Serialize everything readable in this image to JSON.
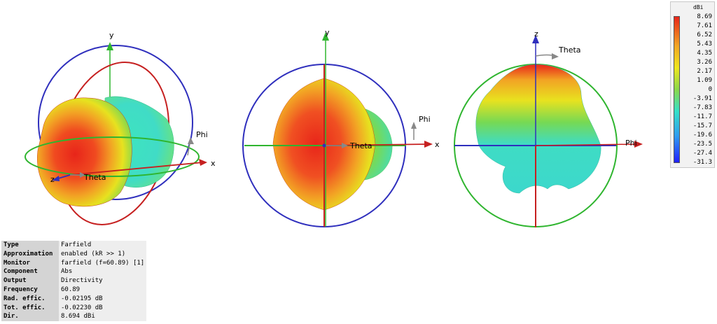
{
  "views": [
    {
      "axes": {
        "x": "x",
        "y": "y",
        "z": "z"
      },
      "angles": {
        "theta": "Theta",
        "phi": "Phi"
      }
    },
    {
      "axes": {
        "x": "x",
        "y": "y"
      },
      "angles": {
        "theta": "Theta",
        "phi": "Phi"
      }
    },
    {
      "axes": {
        "z": "z"
      },
      "angles": {
        "theta": "Theta",
        "phi": "Phi"
      }
    }
  ],
  "colorbar": {
    "unit": "dBi",
    "ticks": [
      "8.69",
      "7.61",
      "6.52",
      "5.43",
      "4.35",
      "3.26",
      "2.17",
      "1.09",
      "0",
      "-3.91",
      "-7.83",
      "-11.7",
      "-15.7",
      "-19.6",
      "-23.5",
      "-27.4",
      "-31.3"
    ],
    "colors": {
      "max": "#e8251a",
      "mid": "#f2e81c",
      "low": "#35e0c8",
      "min": "#2020ff"
    }
  },
  "info_table": [
    {
      "label": "Type",
      "value": "Farfield"
    },
    {
      "label": "Approximation",
      "value": "enabled (kR >> 1)"
    },
    {
      "label": "Monitor",
      "value": "farfield (f=60.89) [1]"
    },
    {
      "label": "Component",
      "value": "Abs"
    },
    {
      "label": "Output",
      "value": "Directivity"
    },
    {
      "label": "Frequency",
      "value": "60.89"
    },
    {
      "label": "Rad. effic.",
      "value": "-0.02195 dB"
    },
    {
      "label": "Tot. effic.",
      "value": "-0.02230 dB"
    },
    {
      "label": "Dir.",
      "value": " 8.694 dBi"
    }
  ]
}
